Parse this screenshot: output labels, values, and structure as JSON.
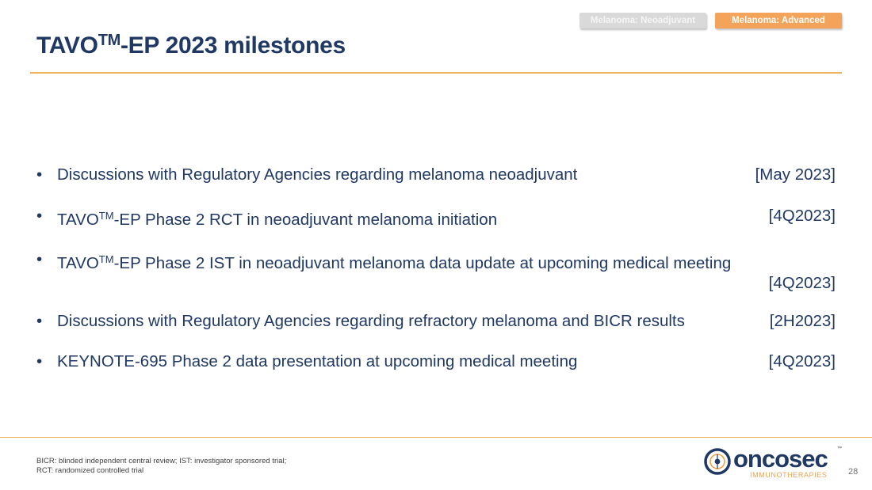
{
  "tags": {
    "neoadjuvant": "Melanoma: Neoadjuvant",
    "advanced": "Melanoma: Advanced"
  },
  "title": {
    "prefix": "TAVO",
    "tm": "TM",
    "suffix": "-EP 2023 milestones"
  },
  "bullets": [
    {
      "pre": "Discussions with Regulatory Agencies regarding melanoma neoadjuvant",
      "tm": "",
      "post": "",
      "date": "[May 2023]"
    },
    {
      "pre": "TAVO",
      "tm": "TM",
      "post": "-EP Phase 2 RCT in neoadjuvant melanoma initiation",
      "date": "[4Q2023]"
    },
    {
      "pre": "TAVO",
      "tm": "TM",
      "post": "-EP Phase 2 IST in neoadjuvant melanoma data update at upcoming medical meeting",
      "date": "[4Q2023]"
    },
    {
      "pre": "Discussions with Regulatory Agencies regarding refractory melanoma and BICR results",
      "tm": "",
      "post": "",
      "date": "[2H2023]"
    },
    {
      "pre": "KEYNOTE-695 Phase 2 data presentation at upcoming medical meeting",
      "tm": "",
      "post": "",
      "date": "[4Q2023]"
    }
  ],
  "footnote": {
    "line1": "BICR: blinded independent central review; IST: investigator sponsored trial;",
    "line2": "RCT: randomized controlled trial"
  },
  "logo": {
    "wordmark": "oncosec",
    "tm": "™",
    "subtitle": "IMMUNOTHERAPIES"
  },
  "page_number": "28",
  "colors": {
    "navy": "#1f3864",
    "orange": "#f4a45a",
    "rule": "#f0b560"
  }
}
